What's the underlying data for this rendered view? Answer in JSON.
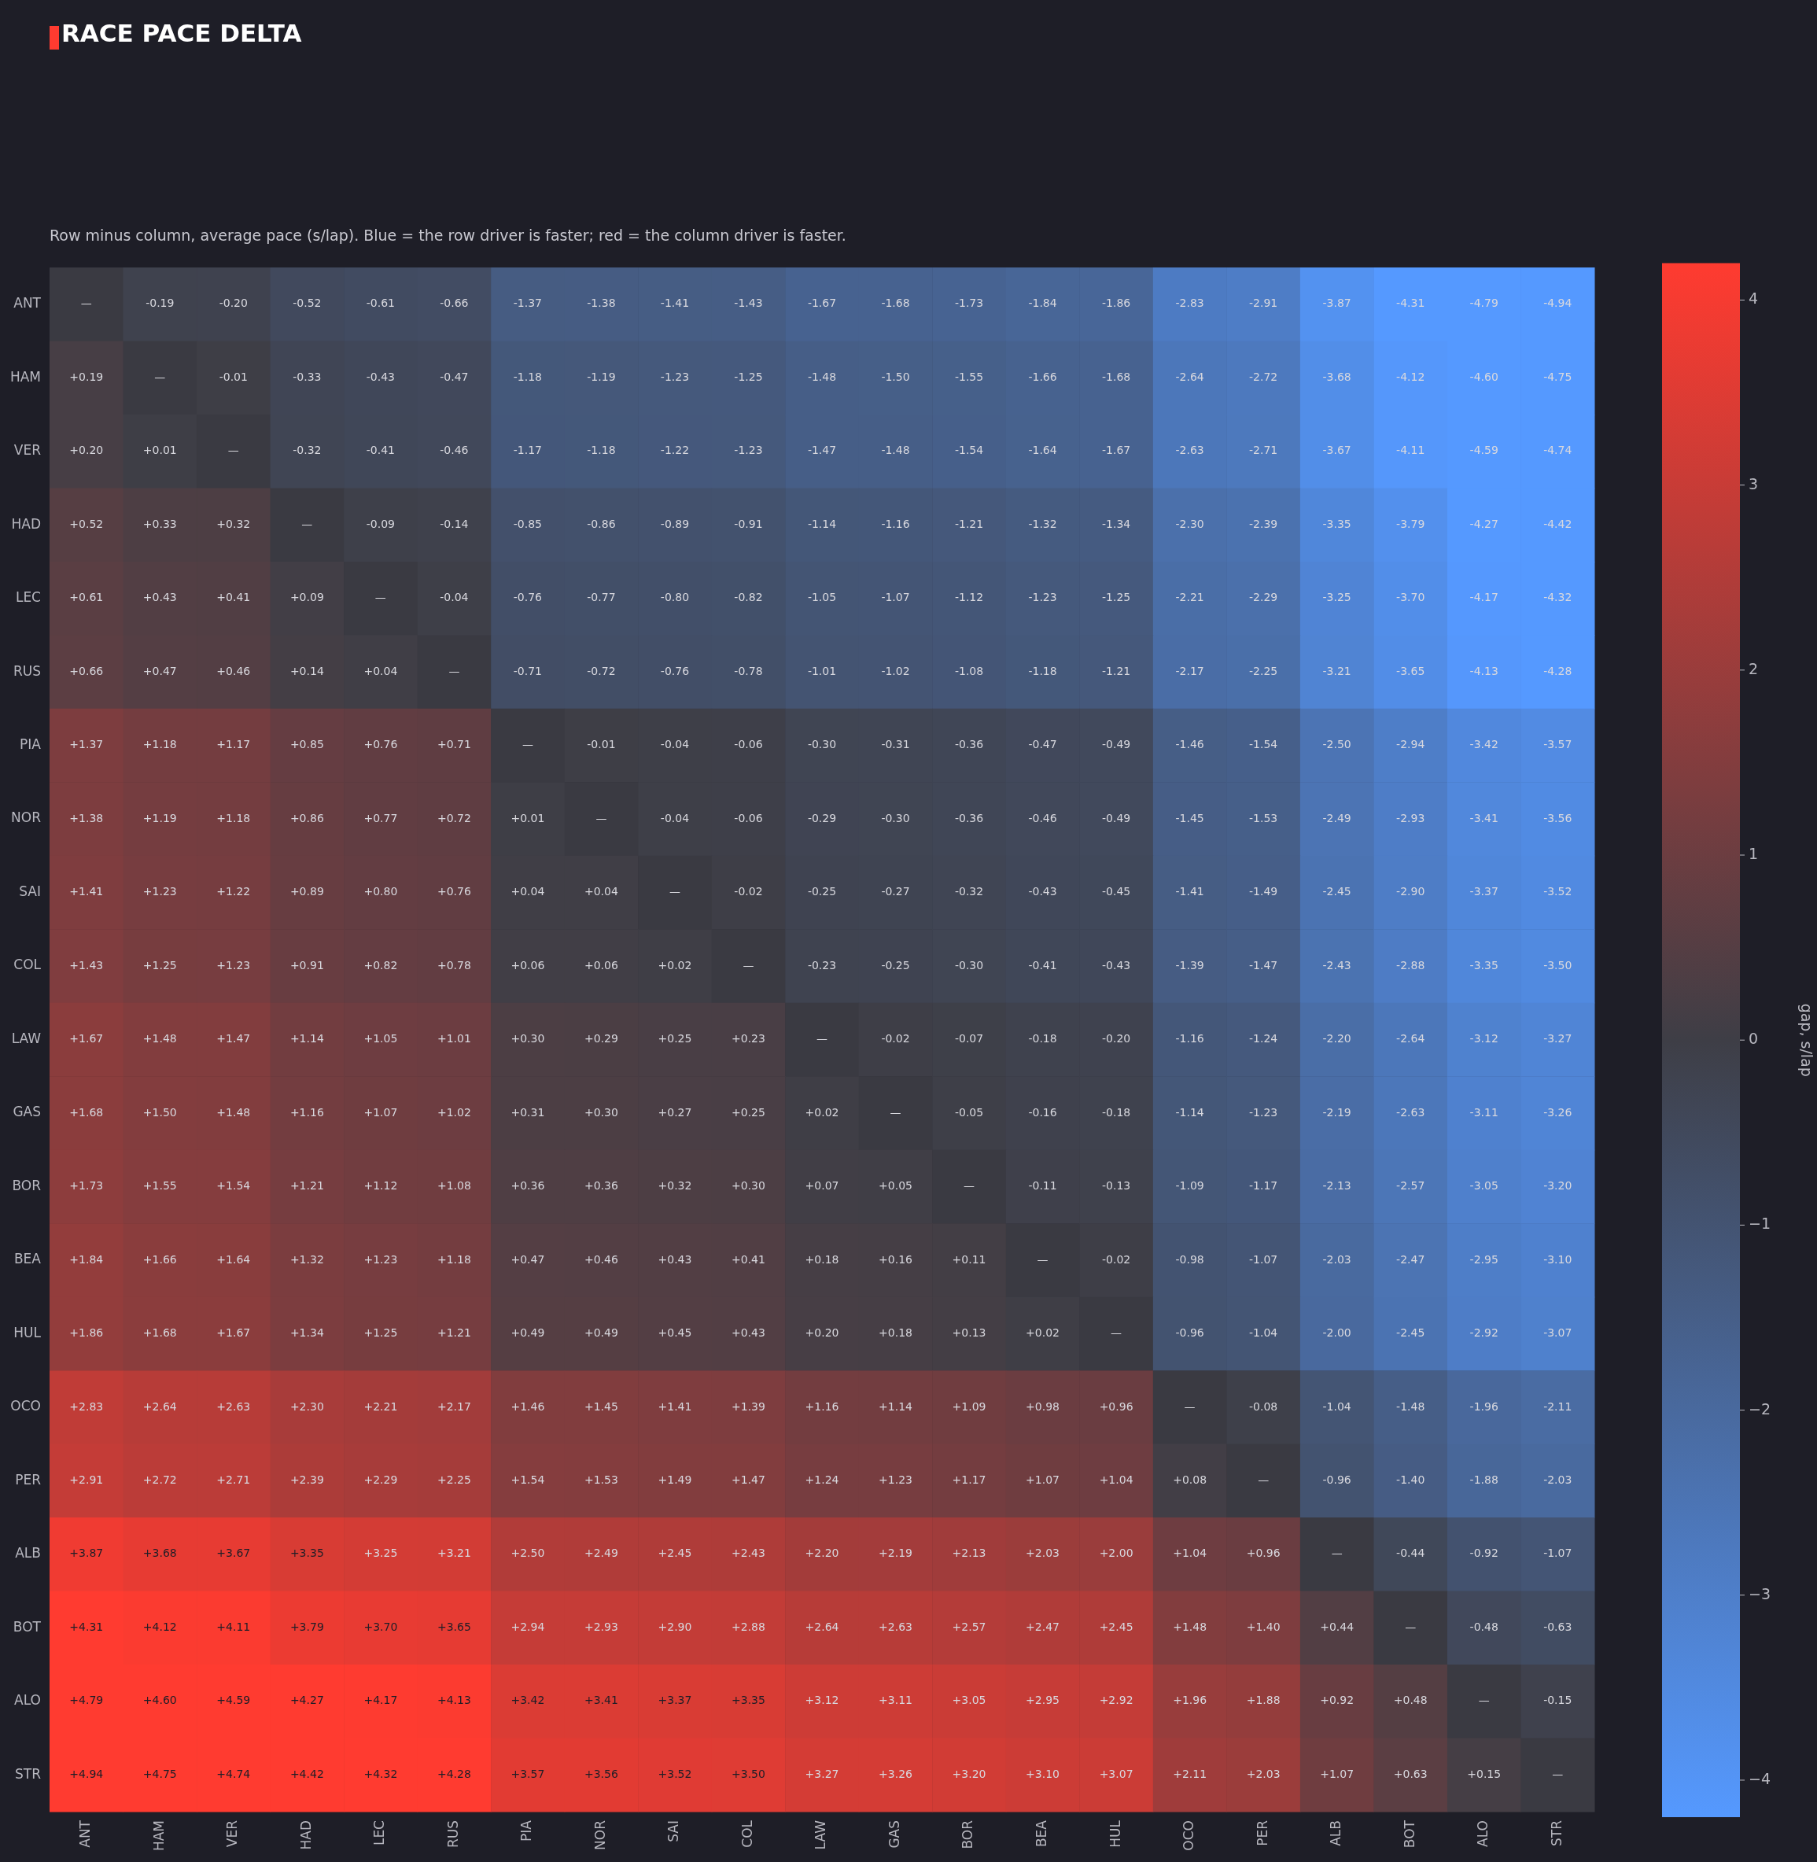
{
  "chart_data": {
    "type": "heatmap",
    "title": "RACE PACE DELTA",
    "subtitle": "Row minus column, average pace (s/lap). Blue = the row driver is faster; red = the column driver is faster.",
    "categories": [
      "ANT",
      "HAM",
      "VER",
      "HAD",
      "LEC",
      "RUS",
      "PIA",
      "NOR",
      "SAI",
      "COL",
      "LAW",
      "GAS",
      "BOR",
      "BEA",
      "HUL",
      "OCO",
      "PER",
      "ALB",
      "BOT",
      "ALO",
      "STR"
    ],
    "y_categories": [
      "ANT",
      "HAM",
      "VER",
      "HAD",
      "LEC",
      "RUS",
      "PIA",
      "NOR",
      "SAI",
      "COL",
      "LAW",
      "GAS",
      "BOR",
      "BEA",
      "HUL",
      "OCO",
      "PER",
      "ALB",
      "BOT",
      "ALO",
      "STR"
    ],
    "cells": [
      [
        null,
        -0.19,
        -0.2,
        -0.52,
        -0.61,
        -0.66,
        -1.37,
        -1.38,
        -1.41,
        -1.43,
        -1.67,
        -1.68,
        -1.73,
        -1.84,
        -1.86,
        -2.83,
        -2.91,
        -3.87,
        -4.31,
        -4.79,
        -4.94
      ],
      [
        0.19,
        null,
        -0.01,
        -0.33,
        -0.43,
        -0.47,
        -1.18,
        -1.19,
        -1.23,
        -1.25,
        -1.48,
        -1.5,
        -1.55,
        -1.66,
        -1.68,
        -2.64,
        -2.72,
        -3.68,
        -4.12,
        -4.6,
        -4.75
      ],
      [
        0.2,
        0.01,
        null,
        -0.32,
        -0.41,
        -0.46,
        -1.17,
        -1.18,
        -1.22,
        -1.23,
        -1.47,
        -1.48,
        -1.54,
        -1.64,
        -1.67,
        -2.63,
        -2.71,
        -3.67,
        -4.11,
        -4.59,
        -4.74
      ],
      [
        0.52,
        0.33,
        0.32,
        null,
        -0.09,
        -0.14,
        -0.85,
        -0.86,
        -0.89,
        -0.91,
        -1.14,
        -1.16,
        -1.21,
        -1.32,
        -1.34,
        -2.3,
        -2.39,
        -3.35,
        -3.79,
        -4.27,
        -4.42
      ],
      [
        0.61,
        0.43,
        0.41,
        0.09,
        null,
        -0.04,
        -0.76,
        -0.77,
        -0.8,
        -0.82,
        -1.05,
        -1.07,
        -1.12,
        -1.23,
        -1.25,
        -2.21,
        -2.29,
        -3.25,
        -3.7,
        -4.17,
        -4.32
      ],
      [
        0.66,
        0.47,
        0.46,
        0.14,
        0.04,
        null,
        -0.71,
        -0.72,
        -0.76,
        -0.78,
        -1.01,
        -1.02,
        -1.08,
        -1.18,
        -1.21,
        -2.17,
        -2.25,
        -3.21,
        -3.65,
        -4.13,
        -4.28
      ],
      [
        1.37,
        1.18,
        1.17,
        0.85,
        0.76,
        0.71,
        null,
        -0.01,
        -0.04,
        -0.06,
        -0.3,
        -0.31,
        -0.36,
        -0.47,
        -0.49,
        -1.46,
        -1.54,
        -2.5,
        -2.94,
        -3.42,
        -3.57
      ],
      [
        1.38,
        1.19,
        1.18,
        0.86,
        0.77,
        0.72,
        0.01,
        null,
        -0.04,
        -0.06,
        -0.29,
        -0.3,
        -0.36,
        -0.46,
        -0.49,
        -1.45,
        -1.53,
        -2.49,
        -2.93,
        -3.41,
        -3.56
      ],
      [
        1.41,
        1.23,
        1.22,
        0.89,
        0.8,
        0.76,
        0.04,
        0.04,
        null,
        -0.02,
        -0.25,
        -0.27,
        -0.32,
        -0.43,
        -0.45,
        -1.41,
        -1.49,
        -2.45,
        -2.9,
        -3.37,
        -3.52
      ],
      [
        1.43,
        1.25,
        1.23,
        0.91,
        0.82,
        0.78,
        0.06,
        0.06,
        0.02,
        null,
        -0.23,
        -0.25,
        -0.3,
        -0.41,
        -0.43,
        -1.39,
        -1.47,
        -2.43,
        -2.88,
        -3.35,
        -3.5
      ],
      [
        1.67,
        1.48,
        1.47,
        1.14,
        1.05,
        1.01,
        0.3,
        0.29,
        0.25,
        0.23,
        null,
        -0.02,
        -0.07,
        -0.18,
        -0.2,
        -1.16,
        -1.24,
        -2.2,
        -2.64,
        -3.12,
        -3.27
      ],
      [
        1.68,
        1.5,
        1.48,
        1.16,
        1.07,
        1.02,
        0.31,
        0.3,
        0.27,
        0.25,
        0.02,
        null,
        -0.05,
        -0.16,
        -0.18,
        -1.14,
        -1.23,
        -2.19,
        -2.63,
        -3.11,
        -3.26
      ],
      [
        1.73,
        1.55,
        1.54,
        1.21,
        1.12,
        1.08,
        0.36,
        0.36,
        0.32,
        0.3,
        0.07,
        0.05,
        null,
        -0.11,
        -0.13,
        -1.09,
        -1.17,
        -2.13,
        -2.57,
        -3.05,
        -3.2
      ],
      [
        1.84,
        1.66,
        1.64,
        1.32,
        1.23,
        1.18,
        0.47,
        0.46,
        0.43,
        0.41,
        0.18,
        0.16,
        0.11,
        null,
        -0.02,
        -0.98,
        -1.07,
        -2.03,
        -2.47,
        -2.95,
        -3.1
      ],
      [
        1.86,
        1.68,
        1.67,
        1.34,
        1.25,
        1.21,
        0.49,
        0.49,
        0.45,
        0.43,
        0.2,
        0.18,
        0.13,
        0.02,
        null,
        -0.96,
        -1.04,
        -2.0,
        -2.45,
        -2.92,
        -3.07
      ],
      [
        2.83,
        2.64,
        2.63,
        2.3,
        2.21,
        2.17,
        1.46,
        1.45,
        1.41,
        1.39,
        1.16,
        1.14,
        1.09,
        0.98,
        0.96,
        null,
        -0.08,
        -1.04,
        -1.48,
        -1.96,
        -2.11
      ],
      [
        2.91,
        2.72,
        2.71,
        2.39,
        2.29,
        2.25,
        1.54,
        1.53,
        1.49,
        1.47,
        1.24,
        1.23,
        1.17,
        1.07,
        1.04,
        0.08,
        null,
        -0.96,
        -1.4,
        -1.88,
        -2.03
      ],
      [
        3.87,
        3.68,
        3.67,
        3.35,
        3.25,
        3.21,
        2.5,
        2.49,
        2.45,
        2.43,
        2.2,
        2.19,
        2.13,
        2.03,
        2.0,
        1.04,
        0.96,
        null,
        -0.44,
        -0.92,
        -1.07
      ],
      [
        4.31,
        4.12,
        4.11,
        3.79,
        3.7,
        3.65,
        2.94,
        2.93,
        2.9,
        2.88,
        2.64,
        2.63,
        2.57,
        2.47,
        2.45,
        1.48,
        1.4,
        0.44,
        null,
        -0.48,
        -0.63
      ],
      [
        4.79,
        4.6,
        4.59,
        4.27,
        4.17,
        4.13,
        3.42,
        3.41,
        3.37,
        3.35,
        3.12,
        3.11,
        3.05,
        2.95,
        2.92,
        1.96,
        1.88,
        0.92,
        0.48,
        null,
        -0.15
      ],
      [
        4.94,
        4.75,
        4.74,
        4.42,
        4.32,
        4.28,
        3.57,
        3.56,
        3.52,
        3.5,
        3.27,
        3.26,
        3.2,
        3.1,
        3.07,
        2.11,
        2.03,
        1.07,
        0.63,
        0.15,
        null
      ]
    ],
    "cell_labels": [
      [
        "—",
        "-0.19",
        "-0.20",
        "-0.52",
        "-0.61",
        "-0.66",
        "-1.37",
        "-1.38",
        "-1.41",
        "-1.43",
        "-1.67",
        "-1.68",
        "-1.73",
        "-1.84",
        "-1.86",
        "-2.83",
        "-2.91",
        "-3.87",
        "-4.31",
        "-4.79",
        "-4.94"
      ],
      [
        "+0.19",
        "—",
        "-0.01",
        "-0.33",
        "-0.43",
        "-0.47",
        "-1.18",
        "-1.19",
        "-1.23",
        "-1.25",
        "-1.48",
        "-1.50",
        "-1.55",
        "-1.66",
        "-1.68",
        "-2.64",
        "-2.72",
        "-3.68",
        "-4.12",
        "-4.60",
        "-4.75"
      ],
      [
        "+0.20",
        "+0.01",
        "—",
        "-0.32",
        "-0.41",
        "-0.46",
        "-1.17",
        "-1.18",
        "-1.22",
        "-1.23",
        "-1.47",
        "-1.48",
        "-1.54",
        "-1.64",
        "-1.67",
        "-2.63",
        "-2.71",
        "-3.67",
        "-4.11",
        "-4.59",
        "-4.74"
      ],
      [
        "+0.52",
        "+0.33",
        "+0.32",
        "—",
        "-0.09",
        "-0.14",
        "-0.85",
        "-0.86",
        "-0.89",
        "-0.91",
        "-1.14",
        "-1.16",
        "-1.21",
        "-1.32",
        "-1.34",
        "-2.30",
        "-2.39",
        "-3.35",
        "-3.79",
        "-4.27",
        "-4.42"
      ],
      [
        "+0.61",
        "+0.43",
        "+0.41",
        "+0.09",
        "—",
        "-0.04",
        "-0.76",
        "-0.77",
        "-0.80",
        "-0.82",
        "-1.05",
        "-1.07",
        "-1.12",
        "-1.23",
        "-1.25",
        "-2.21",
        "-2.29",
        "-3.25",
        "-3.70",
        "-4.17",
        "-4.32"
      ],
      [
        "+0.66",
        "+0.47",
        "+0.46",
        "+0.14",
        "+0.04",
        "—",
        "-0.71",
        "-0.72",
        "-0.76",
        "-0.78",
        "-1.01",
        "-1.02",
        "-1.08",
        "-1.18",
        "-1.21",
        "-2.17",
        "-2.25",
        "-3.21",
        "-3.65",
        "-4.13",
        "-4.28"
      ],
      [
        "+1.37",
        "+1.18",
        "+1.17",
        "+0.85",
        "+0.76",
        "+0.71",
        "—",
        "-0.01",
        "-0.04",
        "-0.06",
        "-0.30",
        "-0.31",
        "-0.36",
        "-0.47",
        "-0.49",
        "-1.46",
        "-1.54",
        "-2.50",
        "-2.94",
        "-3.42",
        "-3.57"
      ],
      [
        "+1.38",
        "+1.19",
        "+1.18",
        "+0.86",
        "+0.77",
        "+0.72",
        "+0.01",
        "—",
        "-0.04",
        "-0.06",
        "-0.29",
        "-0.30",
        "-0.36",
        "-0.46",
        "-0.49",
        "-1.45",
        "-1.53",
        "-2.49",
        "-2.93",
        "-3.41",
        "-3.56"
      ],
      [
        "+1.41",
        "+1.23",
        "+1.22",
        "+0.89",
        "+0.80",
        "+0.76",
        "+0.04",
        "+0.04",
        "—",
        "-0.02",
        "-0.25",
        "-0.27",
        "-0.32",
        "-0.43",
        "-0.45",
        "-1.41",
        "-1.49",
        "-2.45",
        "-2.90",
        "-3.37",
        "-3.52"
      ],
      [
        "+1.43",
        "+1.25",
        "+1.23",
        "+0.91",
        "+0.82",
        "+0.78",
        "+0.06",
        "+0.06",
        "+0.02",
        "—",
        "-0.23",
        "-0.25",
        "-0.30",
        "-0.41",
        "-0.43",
        "-1.39",
        "-1.47",
        "-2.43",
        "-2.88",
        "-3.35",
        "-3.50"
      ],
      [
        "+1.67",
        "+1.48",
        "+1.47",
        "+1.14",
        "+1.05",
        "+1.01",
        "+0.30",
        "+0.29",
        "+0.25",
        "+0.23",
        "—",
        "-0.02",
        "-0.07",
        "-0.18",
        "-0.20",
        "-1.16",
        "-1.24",
        "-2.20",
        "-2.64",
        "-3.12",
        "-3.27"
      ],
      [
        "+1.68",
        "+1.50",
        "+1.48",
        "+1.16",
        "+1.07",
        "+1.02",
        "+0.31",
        "+0.30",
        "+0.27",
        "+0.25",
        "+0.02",
        "—",
        "-0.05",
        "-0.16",
        "-0.18",
        "-1.14",
        "-1.23",
        "-2.19",
        "-2.63",
        "-3.11",
        "-3.26"
      ],
      [
        "+1.73",
        "+1.55",
        "+1.54",
        "+1.21",
        "+1.12",
        "+1.08",
        "+0.36",
        "+0.36",
        "+0.32",
        "+0.30",
        "+0.07",
        "+0.05",
        "—",
        "-0.11",
        "-0.13",
        "-1.09",
        "-1.17",
        "-2.13",
        "-2.57",
        "-3.05",
        "-3.20"
      ],
      [
        "+1.84",
        "+1.66",
        "+1.64",
        "+1.32",
        "+1.23",
        "+1.18",
        "+0.47",
        "+0.46",
        "+0.43",
        "+0.41",
        "+0.18",
        "+0.16",
        "+0.11",
        "—",
        "-0.02",
        "-0.98",
        "-1.07",
        "-2.03",
        "-2.47",
        "-2.95",
        "-3.10"
      ],
      [
        "+1.86",
        "+1.68",
        "+1.67",
        "+1.34",
        "+1.25",
        "+1.21",
        "+0.49",
        "+0.49",
        "+0.45",
        "+0.43",
        "+0.20",
        "+0.18",
        "+0.13",
        "+0.02",
        "—",
        "-0.96",
        "-1.04",
        "-2.00",
        "-2.45",
        "-2.92",
        "-3.07"
      ],
      [
        "+2.83",
        "+2.64",
        "+2.63",
        "+2.30",
        "+2.21",
        "+2.17",
        "+1.46",
        "+1.45",
        "+1.41",
        "+1.39",
        "+1.16",
        "+1.14",
        "+1.09",
        "+0.98",
        "+0.96",
        "—",
        "-0.08",
        "-1.04",
        "-1.48",
        "-1.96",
        "-2.11"
      ],
      [
        "+2.91",
        "+2.72",
        "+2.71",
        "+2.39",
        "+2.29",
        "+2.25",
        "+1.54",
        "+1.53",
        "+1.49",
        "+1.47",
        "+1.24",
        "+1.23",
        "+1.17",
        "+1.07",
        "+1.04",
        "+0.08",
        "—",
        "-0.96",
        "-1.40",
        "-1.88",
        "-2.03"
      ],
      [
        "+3.87",
        "+3.68",
        "+3.67",
        "+3.35",
        "+3.25",
        "+3.21",
        "+2.50",
        "+2.49",
        "+2.45",
        "+2.43",
        "+2.20",
        "+2.19",
        "+2.13",
        "+2.03",
        "+2.00",
        "+1.04",
        "+0.96",
        "—",
        "-0.44",
        "-0.92",
        "-1.07"
      ],
      [
        "+4.31",
        "+4.12",
        "+4.11",
        "+3.79",
        "+3.70",
        "+3.65",
        "+2.94",
        "+2.93",
        "+2.90",
        "+2.88",
        "+2.64",
        "+2.63",
        "+2.57",
        "+2.47",
        "+2.45",
        "+1.48",
        "+1.40",
        "+0.44",
        "—",
        "-0.48",
        "-0.63"
      ],
      [
        "+4.79",
        "+4.60",
        "+4.59",
        "+4.27",
        "+4.17",
        "+4.13",
        "+3.42",
        "+3.41",
        "+3.37",
        "+3.35",
        "+3.12",
        "+3.11",
        "+3.05",
        "+2.95",
        "+2.92",
        "+1.96",
        "+1.88",
        "+0.92",
        "+0.48",
        "—",
        "-0.15"
      ],
      [
        "+4.94",
        "+4.75",
        "+4.74",
        "+4.42",
        "+4.32",
        "+4.28",
        "+3.57",
        "+3.56",
        "+3.52",
        "+3.50",
        "+3.27",
        "+3.26",
        "+3.20",
        "+3.10",
        "+3.07",
        "+2.11",
        "+2.03",
        "+1.07",
        "+0.63",
        "+0.15",
        "—"
      ]
    ],
    "clim": [
      -4.2,
      4.2
    ],
    "cticks": [
      -4,
      -3,
      -2,
      -1,
      0,
      1,
      2,
      3,
      4
    ],
    "clabel": "gap, s/lap"
  }
}
